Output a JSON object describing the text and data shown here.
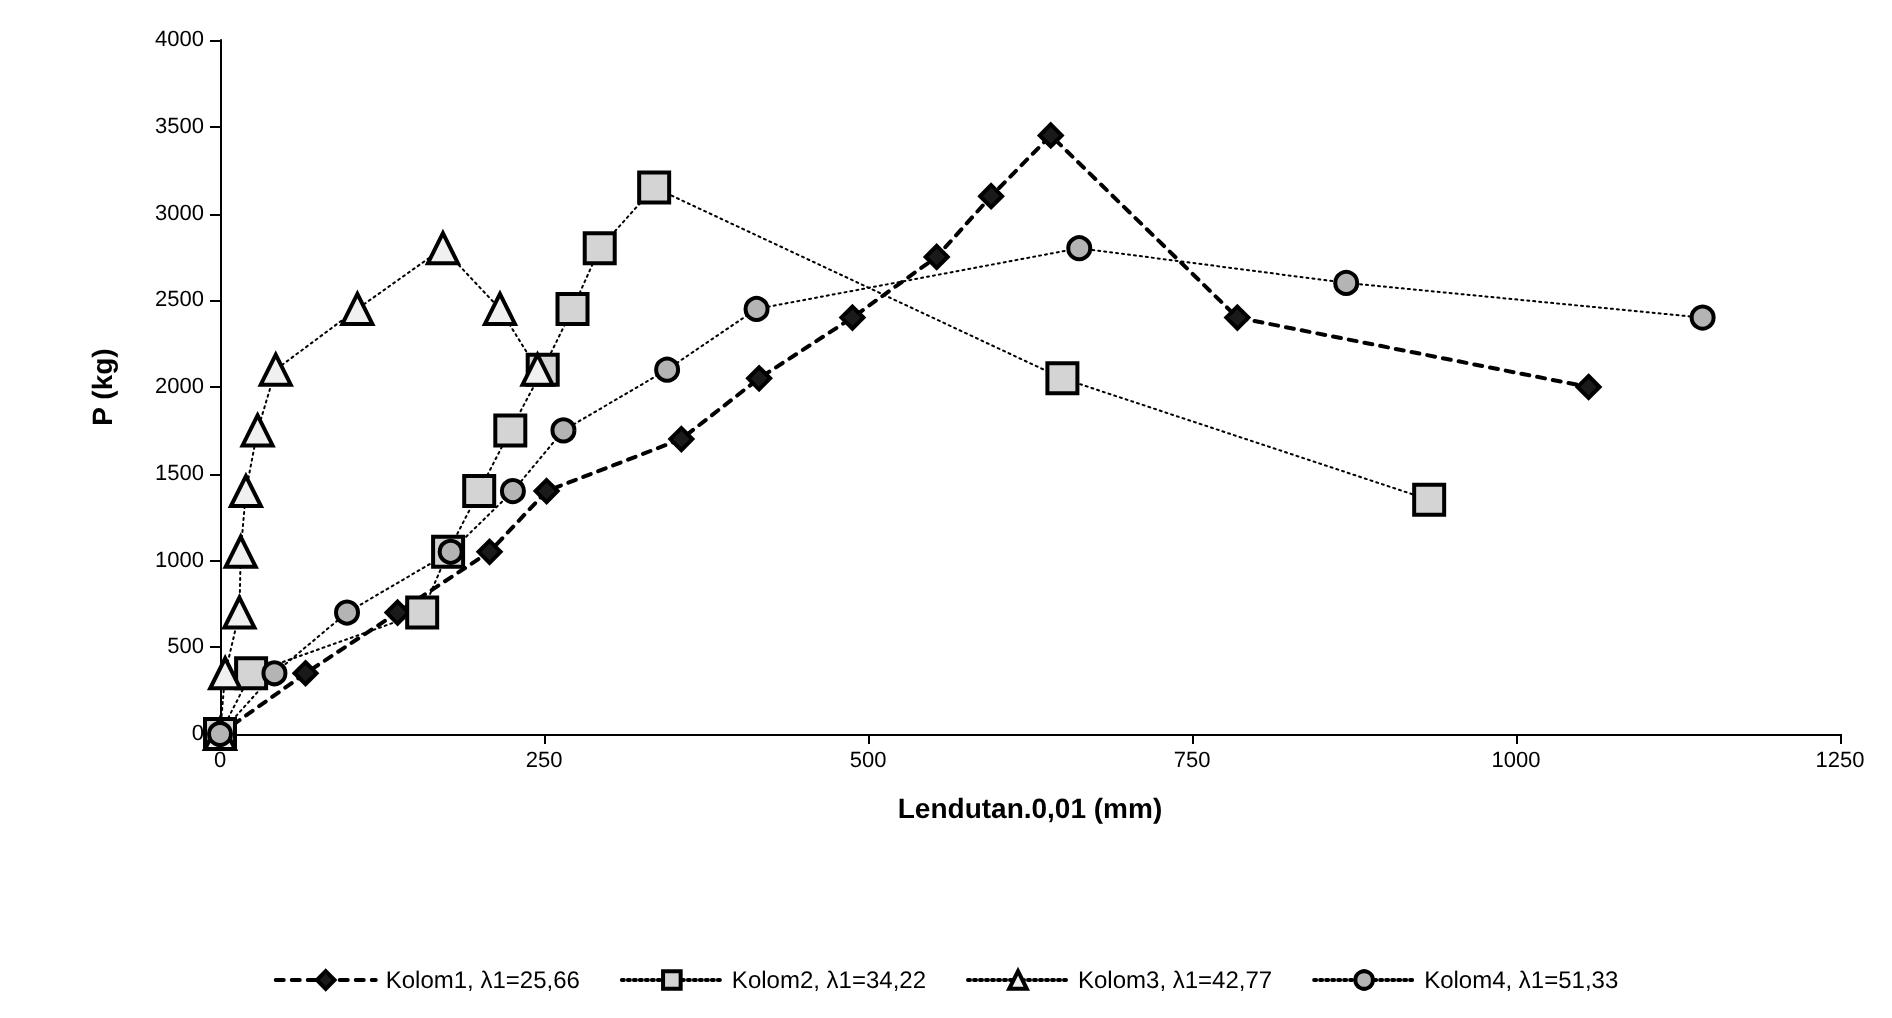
{
  "chart_data": {
    "type": "line",
    "xlabel": "Lendutan.0,01 (mm)",
    "ylabel": "P (kg)",
    "xlim": [
      0,
      1250
    ],
    "xticks": [
      0,
      250,
      500,
      750,
      1000,
      1250
    ],
    "ylim": [
      0,
      4000
    ],
    "yticks": [
      0,
      500,
      1000,
      1500,
      2000,
      2500,
      3000,
      3500,
      4000
    ],
    "grid": false,
    "legend": "bottom",
    "series": [
      {
        "name": "Kolom1, λ1=25,66",
        "color": "#1a1a1a",
        "marker": "diamond",
        "line_style": "dashed",
        "x": [
          0,
          66,
          137,
          208,
          252,
          356,
          416,
          488,
          553,
          595,
          641,
          785,
          1056
        ],
        "values": [
          0,
          350,
          700,
          1050,
          1400,
          1700,
          2050,
          2400,
          2750,
          3100,
          3450,
          2400,
          2000
        ]
      },
      {
        "name": "Kolom2, λ1=34,22",
        "color": "#d4d4d4",
        "marker": "square",
        "line_style": "dotted",
        "x": [
          0,
          24,
          156,
          176,
          200,
          224,
          249,
          272,
          293,
          335,
          650,
          933
        ],
        "values": [
          0,
          350,
          700,
          1050,
          1400,
          1750,
          2100,
          2450,
          2800,
          3150,
          2050,
          1350
        ]
      },
      {
        "name": "Kolom3, λ1=42,77",
        "color": "#f0f0f0",
        "marker": "triangle",
        "line_style": "dotted",
        "x": [
          0,
          4,
          15,
          16,
          20,
          29,
          43,
          106,
          172,
          216,
          245
        ],
        "values": [
          0,
          350,
          700,
          1050,
          1400,
          1750,
          2100,
          2450,
          2800,
          2450,
          2100
        ]
      },
      {
        "name": "Kolom4, λ1=51,33",
        "color": "#b4b4b4",
        "marker": "circle",
        "line_style": "dotted",
        "x": [
          0,
          42,
          98,
          178,
          226,
          265,
          345,
          414,
          663,
          869,
          1144
        ],
        "values": [
          0,
          350,
          700,
          1050,
          1400,
          1750,
          2100,
          2450,
          2800,
          2600,
          2400
        ]
      }
    ]
  }
}
